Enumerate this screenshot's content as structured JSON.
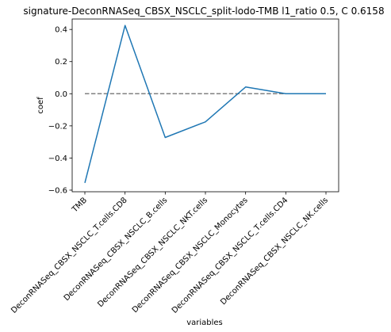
{
  "chart_data": {
    "type": "line",
    "title": "signature-DeconRNASeq_CBSX_NSCLC_split-lodo-TMB l1_ratio 0.5, C 0.6158",
    "xlabel": "variables",
    "ylabel": "coef",
    "categories": [
      "TMB",
      "DeconRNASeq_CBSX_NSCLC_T.cells.CD8",
      "DeconRNASeq_CBSX_NSCLC_B.cells",
      "DeconRNASeq_CBSX_NSCLC_NKT.cells",
      "DeconRNASeq_CBSX_NSCLC_Monocytes",
      "DeconRNASeq_CBSX_NSCLC_T.cells.CD4",
      "DeconRNASeq_CBSX_NSCLC_NK.cells"
    ],
    "series": [
      {
        "values": [
          -0.555,
          0.425,
          -0.272,
          -0.175,
          0.042,
          0.0,
          0.0
        ],
        "color": "#1f77b4"
      }
    ],
    "reference_line": {
      "y": 0,
      "style": "dashed",
      "color": "#808080"
    },
    "ylim": [
      -0.61,
      0.465
    ],
    "yticks": [
      -0.6,
      -0.4,
      -0.2,
      0.0,
      0.2,
      0.4
    ],
    "ytick_labels": [
      "−0.6",
      "−0.4",
      "−0.2",
      "0.0",
      "0.2",
      "0.4"
    ],
    "grid": false,
    "legend": "none"
  }
}
